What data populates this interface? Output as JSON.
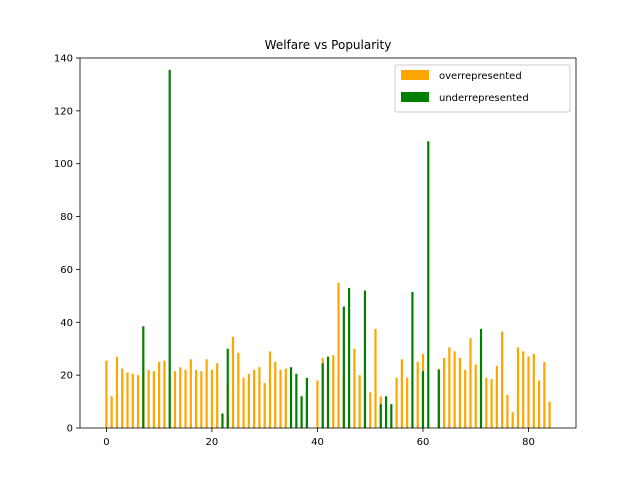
{
  "chart_data": {
    "type": "bar",
    "title": "Welfare vs Popularity",
    "xlabel": "",
    "ylabel": "",
    "xlim": [
      -5,
      89
    ],
    "ylim": [
      0,
      140
    ],
    "xticks": [
      0,
      20,
      40,
      60,
      80
    ],
    "yticks": [
      0,
      20,
      40,
      60,
      80,
      100,
      120,
      140
    ],
    "grid": false,
    "legend_position": "top-right",
    "colors": {
      "overrepresented": "#ffa500",
      "underrepresented": "#008000"
    },
    "series": [
      {
        "name": "overrepresented",
        "color": "#ffa500",
        "x": [
          0,
          1,
          2,
          3,
          4,
          5,
          6,
          7,
          8,
          9,
          10,
          11,
          13,
          14,
          15,
          16,
          17,
          18,
          19,
          20,
          21,
          23,
          24,
          25,
          26,
          27,
          28,
          29,
          30,
          31,
          32,
          33,
          34,
          38,
          40,
          41,
          43,
          44,
          45,
          47,
          48,
          50,
          51,
          52,
          55,
          56,
          57,
          59,
          60,
          63,
          64,
          65,
          66,
          67,
          68,
          69,
          70,
          72,
          73,
          74,
          75,
          76,
          77,
          78,
          79,
          80,
          81,
          82,
          83,
          84
        ],
        "values": [
          25.5,
          12,
          27,
          22.5,
          21,
          20.5,
          20,
          22,
          22,
          21.5,
          25,
          25.5,
          21.5,
          23,
          22,
          26,
          22,
          21.5,
          26,
          22,
          24.5,
          16.5,
          34.5,
          28.5,
          19,
          20.5,
          22,
          23,
          17,
          29,
          25,
          22,
          22.5,
          13.5,
          18,
          26.5,
          27.5,
          55,
          19.5,
          30,
          20,
          13.5,
          37.5,
          12,
          19,
          26,
          19,
          25,
          28,
          22.5,
          26.5,
          30.5,
          29,
          26.5,
          22,
          34,
          24,
          19,
          18.5,
          23.5,
          36.5,
          12.5,
          6,
          30.5,
          29,
          27,
          28,
          18,
          25,
          10
        ]
      },
      {
        "name": "underrepresented",
        "color": "#008000",
        "x": [
          7,
          12,
          22,
          23,
          35,
          36,
          37,
          38,
          41,
          42,
          45,
          46,
          49,
          52,
          53,
          54,
          58,
          60,
          61,
          63,
          71
        ],
        "values": [
          38.5,
          135.5,
          5.5,
          30,
          23,
          20.5,
          12,
          19,
          24.5,
          27,
          46,
          53,
          52,
          9,
          12,
          9,
          51.5,
          21.5,
          108.5,
          22,
          37.5
        ]
      }
    ]
  }
}
